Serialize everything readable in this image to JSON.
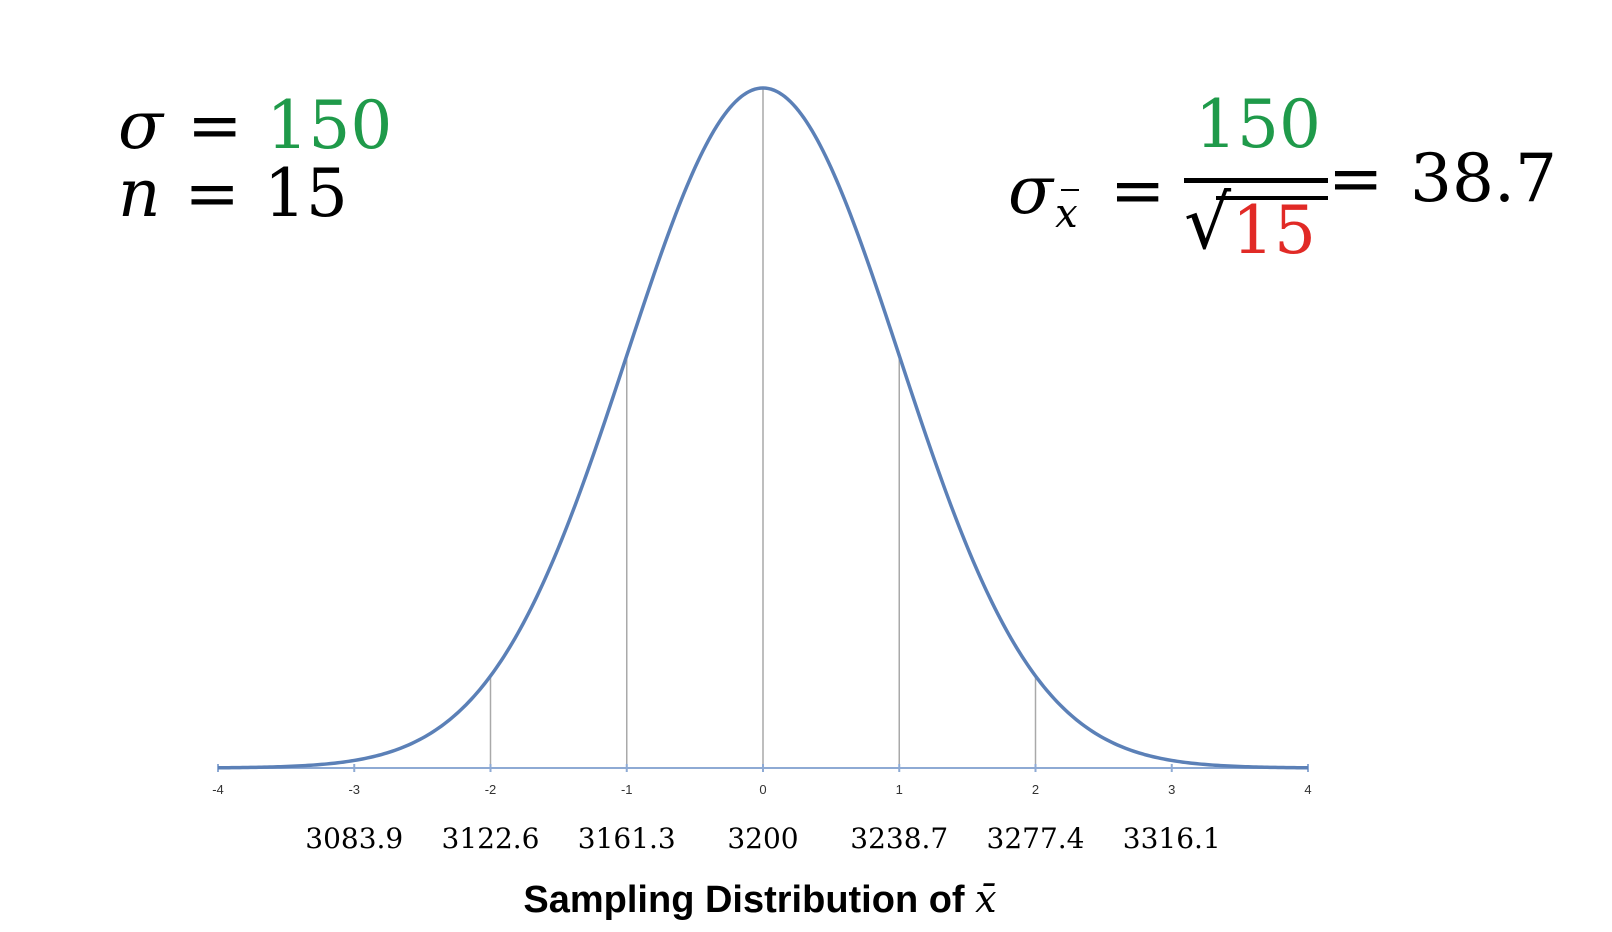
{
  "colors": {
    "curve": "#5b80b7",
    "axis": "#8eaad4",
    "vline": "#a9a9a9",
    "green": "#1f9a4a",
    "red": "#e12a26",
    "text": "#000000"
  },
  "formula_left": {
    "sigma_symbol": "σ",
    "eq": "=",
    "sigma_value": "150",
    "n_symbol": "n",
    "n_value": "15"
  },
  "formula_right": {
    "sigma_symbol": "σ",
    "sub_symbol": "x",
    "eq": "=",
    "numerator": "150",
    "sqrt_symbol": "√",
    "denominator": "15",
    "result": "38.7"
  },
  "chart_data": {
    "type": "line",
    "series": [
      {
        "kind": "standard_normal_density",
        "mean": 0,
        "sd": 1
      }
    ],
    "xlim": [
      -4,
      4
    ],
    "z_ticks": [
      "-4",
      "-3",
      "-2",
      "-1",
      "0",
      "1",
      "2",
      "3",
      "4"
    ],
    "vertical_lines_at_z": [
      -2,
      -1,
      0,
      1,
      2
    ],
    "value_labels": [
      {
        "z": -3,
        "label": "3083.9"
      },
      {
        "z": -2,
        "label": "3122.6"
      },
      {
        "z": -1,
        "label": "3161.3"
      },
      {
        "z": 0,
        "label": "3200"
      },
      {
        "z": 1,
        "label": "3238.7"
      },
      {
        "z": 2,
        "label": "3277.4"
      },
      {
        "z": 3,
        "label": "3316.1"
      }
    ],
    "xlabel_text": "Sampling Distribution of ",
    "xlabel_symbol": "x̄",
    "grid": false
  }
}
